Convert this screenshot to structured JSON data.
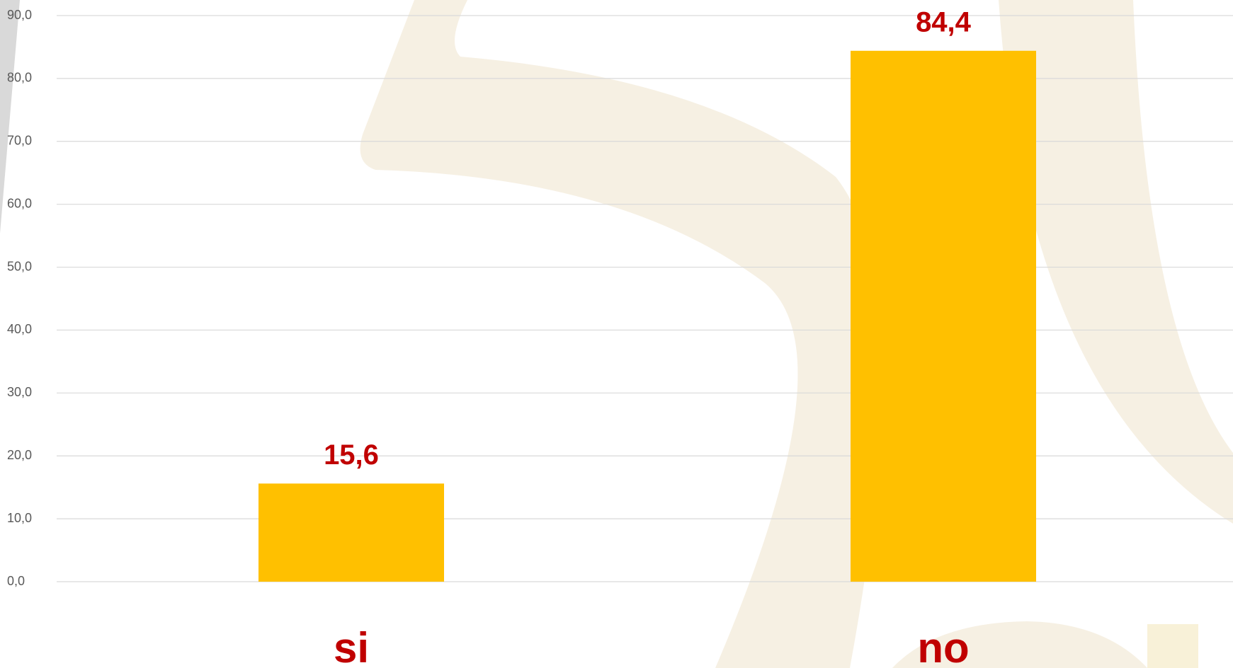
{
  "chart_data": {
    "type": "bar",
    "categories": [
      "si",
      "no"
    ],
    "values": [
      15.6,
      84.4
    ],
    "value_labels": [
      "15,6",
      "84,4"
    ],
    "color": "#ffc000",
    "ylim": [
      0,
      90
    ],
    "yticks": [
      {
        "value": 0,
        "label": "0,0"
      },
      {
        "value": 10,
        "label": "10,0"
      },
      {
        "value": 20,
        "label": "20,0"
      },
      {
        "value": 30,
        "label": "30,0"
      },
      {
        "value": 40,
        "label": "40,0"
      },
      {
        "value": 50,
        "label": "50,0"
      },
      {
        "value": 60,
        "label": "60,0"
      },
      {
        "value": 70,
        "label": "70,0"
      },
      {
        "value": 80,
        "label": "80,0"
      },
      {
        "value": 90,
        "label": "90,0"
      }
    ],
    "grid": true
  }
}
